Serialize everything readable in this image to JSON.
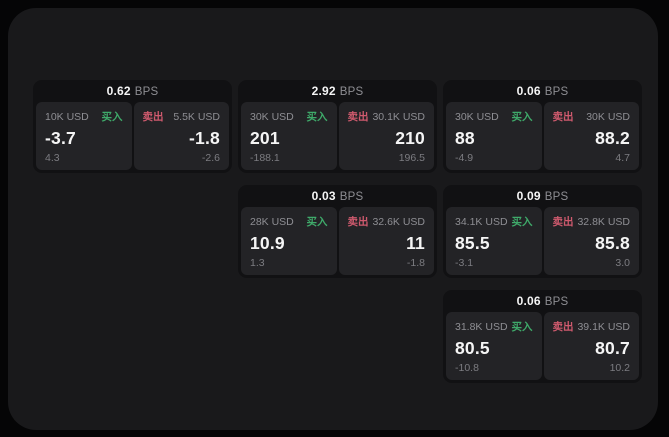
{
  "colors": {
    "page_bg": "#050506",
    "window_bg": "#19191b",
    "card_bg": "#111113",
    "panel_bg": "#232326",
    "text_primary": "#f5f5f5",
    "text_muted": "#8e8e93",
    "buy_green": "#3faa6a",
    "sell_red": "#cf5a6e"
  },
  "cards": [
    {
      "grid": {
        "row": 1,
        "col": 1
      },
      "bps_value": "0.62",
      "bps_unit": "BPS",
      "buy": {
        "size": "10K USD",
        "side": "买入",
        "value": "-3.7",
        "change": "4.3"
      },
      "sell": {
        "side": "卖出",
        "size": "5.5K USD",
        "value": "-1.8",
        "change": "-2.6"
      }
    },
    {
      "grid": {
        "row": 1,
        "col": 2
      },
      "bps_value": "2.92",
      "bps_unit": "BPS",
      "buy": {
        "size": "30K USD",
        "side": "买入",
        "value": "201",
        "change": "-188.1"
      },
      "sell": {
        "side": "卖出",
        "size": "30.1K USD",
        "value": "210",
        "change": "196.5"
      }
    },
    {
      "grid": {
        "row": 1,
        "col": 3
      },
      "bps_value": "0.06",
      "bps_unit": "BPS",
      "buy": {
        "size": "30K USD",
        "side": "买入",
        "value": "88",
        "change": "-4.9"
      },
      "sell": {
        "side": "卖出",
        "size": "30K USD",
        "value": "88.2",
        "change": "4.7"
      }
    },
    {
      "grid": {
        "row": 2,
        "col": 2
      },
      "bps_value": "0.03",
      "bps_unit": "BPS",
      "buy": {
        "size": "28K USD",
        "side": "买入",
        "value": "10.9",
        "change": "1.3"
      },
      "sell": {
        "side": "卖出",
        "size": "32.6K USD",
        "value": "11",
        "change": "-1.8"
      }
    },
    {
      "grid": {
        "row": 2,
        "col": 3
      },
      "bps_value": "0.09",
      "bps_unit": "BPS",
      "buy": {
        "size": "34.1K USD",
        "side": "买入",
        "value": "85.5",
        "change": "-3.1"
      },
      "sell": {
        "side": "卖出",
        "size": "32.8K USD",
        "value": "85.8",
        "change": "3.0"
      }
    },
    {
      "grid": {
        "row": 3,
        "col": 3
      },
      "bps_value": "0.06",
      "bps_unit": "BPS",
      "buy": {
        "size": "31.8K USD",
        "side": "买入",
        "value": "80.5",
        "change": "-10.8"
      },
      "sell": {
        "side": "卖出",
        "size": "39.1K USD",
        "value": "80.7",
        "change": "10.2"
      }
    }
  ]
}
